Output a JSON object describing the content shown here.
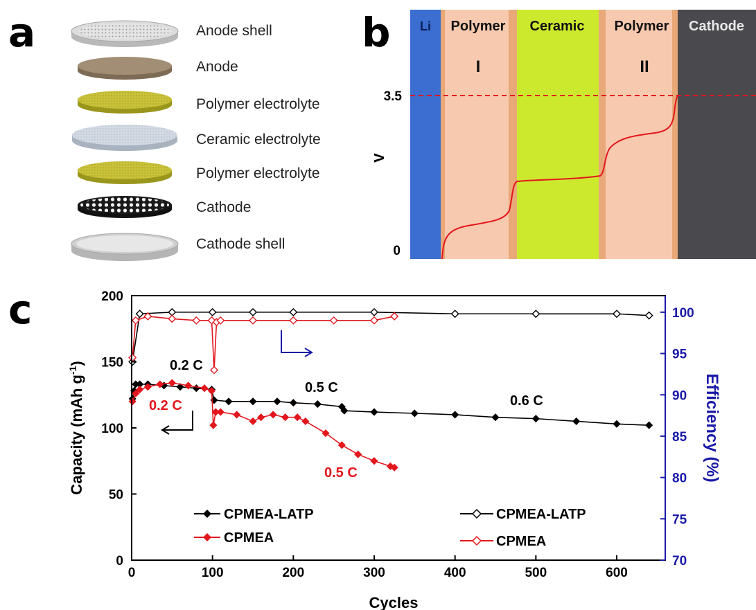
{
  "panels": {
    "a": "a",
    "b": "b",
    "c": "c"
  },
  "stack": {
    "layers": [
      {
        "label": "Anode shell",
        "icon": "anode-shell-disc"
      },
      {
        "label": "Anode",
        "icon": "anode-disc"
      },
      {
        "label": "Polymer electrolyte",
        "icon": "polymer-electrolyte-disc"
      },
      {
        "label": "Ceramic electrolyte",
        "icon": "ceramic-electrolyte-disc"
      },
      {
        "label": "Polymer electrolyte",
        "icon": "polymer-electrolyte-disc"
      },
      {
        "label": "Cathode",
        "icon": "cathode-disc"
      },
      {
        "label": "Cathode shell",
        "icon": "cathode-shell-disc"
      }
    ]
  },
  "colors": {
    "li": "#3b6ed0",
    "polymer": "#f7c9ae",
    "interface": "#e8a878",
    "ceramic": "#cde92e",
    "cathode": "#4a4a4e",
    "red": "#e3161d",
    "blue": "#1a1aa8",
    "black": "#000000"
  },
  "chart_data": [
    {
      "type": "diagram",
      "regions": [
        {
          "label": "Li",
          "sublabel": "",
          "color": "#3b6ed0"
        },
        {
          "label": "Polymer",
          "sublabel": "I",
          "color": "#f7c9ae"
        },
        {
          "label": "Ceramic",
          "sublabel": "",
          "color": "#cde92e"
        },
        {
          "label": "Polymer",
          "sublabel": "II",
          "color": "#f7c9ae"
        },
        {
          "label": "Cathode",
          "sublabel": "",
          "color": "#4a4a4e"
        }
      ],
      "ylabel": "V",
      "yticks": [
        "0",
        "3.5"
      ],
      "reference_line": {
        "y": 3.5,
        "style": "dashed",
        "color": "#e3161d"
      }
    },
    {
      "type": "scatter",
      "xlabel": "Cycles",
      "ylabel_left": "Capacity (mAh g",
      "ylabel_left_sup": "-1",
      "ylabel_left_end": ")",
      "ylabel_right": "Efficiency (%)",
      "xlim": [
        0,
        660
      ],
      "ylim_left": [
        0,
        200
      ],
      "ylim_right": [
        70,
        102
      ],
      "xticks": [
        0,
        100,
        200,
        300,
        400,
        500,
        600
      ],
      "yticks_left": [
        0,
        50,
        100,
        150,
        200
      ],
      "yticks_right": [
        70,
        75,
        80,
        85,
        90,
        95,
        100
      ],
      "annotations": [
        {
          "text": "0.2 C",
          "color": "#000000"
        },
        {
          "text": "0.5 C",
          "color": "#000000"
        },
        {
          "text": "0.6 C",
          "color": "#000000"
        },
        {
          "text": "0.2 C",
          "color": "#e3161d"
        },
        {
          "text": "0.5 C",
          "color": "#e3161d"
        }
      ],
      "legend_left": [
        {
          "label": "CPMEA-LATP",
          "marker": "filled-diamond",
          "color": "#000000"
        },
        {
          "label": "CPMEA",
          "marker": "filled-diamond",
          "color": "#e3161d"
        }
      ],
      "legend_right": [
        {
          "label": "CPMEA-LATP",
          "marker": "open-diamond",
          "color": "#000000"
        },
        {
          "label": "CPMEA",
          "marker": "open-diamond",
          "color": "#e3161d"
        }
      ],
      "series": [
        {
          "name": "CPMEA-LATP",
          "axis": "left",
          "marker": "filled-diamond",
          "color": "#000000",
          "x": [
            1,
            3,
            5,
            10,
            20,
            40,
            60,
            80,
            99,
            102,
            120,
            150,
            180,
            200,
            230,
            260,
            263,
            300,
            350,
            400,
            450,
            500,
            550,
            600,
            640
          ],
          "y": [
            122,
            128,
            133,
            133,
            133,
            132,
            131,
            130,
            129,
            121,
            120,
            120,
            120,
            119,
            118,
            116,
            113,
            112,
            111,
            110,
            108,
            107,
            105,
            103,
            102
          ]
        },
        {
          "name": "CPMEA",
          "axis": "left",
          "marker": "filled-diamond",
          "color": "#e3161d",
          "x": [
            1,
            5,
            10,
            20,
            35,
            50,
            70,
            90,
            99,
            101,
            104,
            110,
            130,
            150,
            160,
            175,
            190,
            205,
            215,
            240,
            260,
            280,
            300,
            320,
            325
          ],
          "y": [
            120,
            126,
            129,
            131,
            133,
            134,
            132,
            130,
            128,
            102,
            112,
            112,
            110,
            105,
            108,
            110,
            108,
            108,
            105,
            96,
            87,
            80,
            75,
            71,
            70
          ]
        },
        {
          "name": "CPMEA-LATP",
          "axis": "right",
          "marker": "open-diamond",
          "color": "#000000",
          "x": [
            1,
            10,
            50,
            100,
            150,
            200,
            300,
            400,
            500,
            600,
            640
          ],
          "y": [
            94,
            99.8,
            100,
            100,
            100,
            100,
            100,
            99.8,
            99.8,
            99.8,
            99.6
          ]
        },
        {
          "name": "CPMEA",
          "axis": "right",
          "marker": "open-diamond",
          "color": "#e3161d",
          "x": [
            1,
            5,
            20,
            50,
            80,
            99,
            102,
            105,
            110,
            150,
            200,
            250,
            300,
            325
          ],
          "y": [
            94.5,
            99,
            99.5,
            99.2,
            99,
            99,
            93,
            98.8,
            99,
            99,
            99,
            99,
            99,
            99.5
          ]
        }
      ]
    }
  ]
}
